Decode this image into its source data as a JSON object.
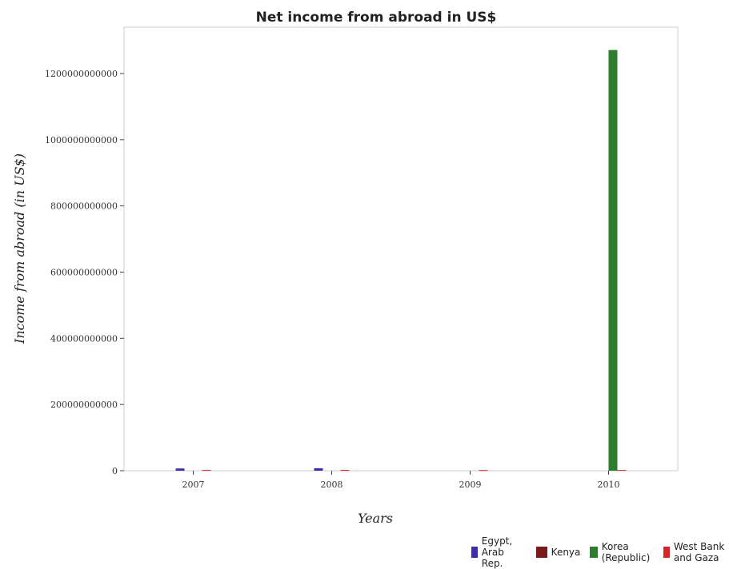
{
  "chart_data": {
    "type": "bar",
    "title": "Net income from abroad in US$",
    "xlabel": "Years",
    "ylabel": "Income from abroad (in US$)",
    "categories": [
      "2007",
      "2008",
      "2009",
      "2010"
    ],
    "ylim": [
      0,
      1340000000000
    ],
    "yticks": [
      0,
      200000000000,
      400000000000,
      600000000000,
      800000000000,
      1000000000000,
      1200000000000
    ],
    "ytick_labels": [
      "0",
      "200000000000",
      "400000000000",
      "600000000000",
      "800000000000",
      "1000000000000",
      "1200000000000"
    ],
    "grid": false,
    "legend_position": "bottom-right",
    "series": [
      {
        "name": "Egypt, Arab Rep.",
        "color": "#3b2fb0",
        "values": [
          6800000000,
          7500000000,
          0,
          0
        ]
      },
      {
        "name": "Kenya",
        "color": "#7a1a1a",
        "values": [
          0,
          0,
          0,
          0
        ]
      },
      {
        "name": "Korea (Republic)",
        "color": "#2e7d2e",
        "values": [
          0,
          0,
          0,
          1271000000000
        ]
      },
      {
        "name": "West Bank and Gaza",
        "color": "#d62728",
        "values": [
          2200000000,
          2300000000,
          2000000000,
          2200000000
        ]
      }
    ]
  }
}
